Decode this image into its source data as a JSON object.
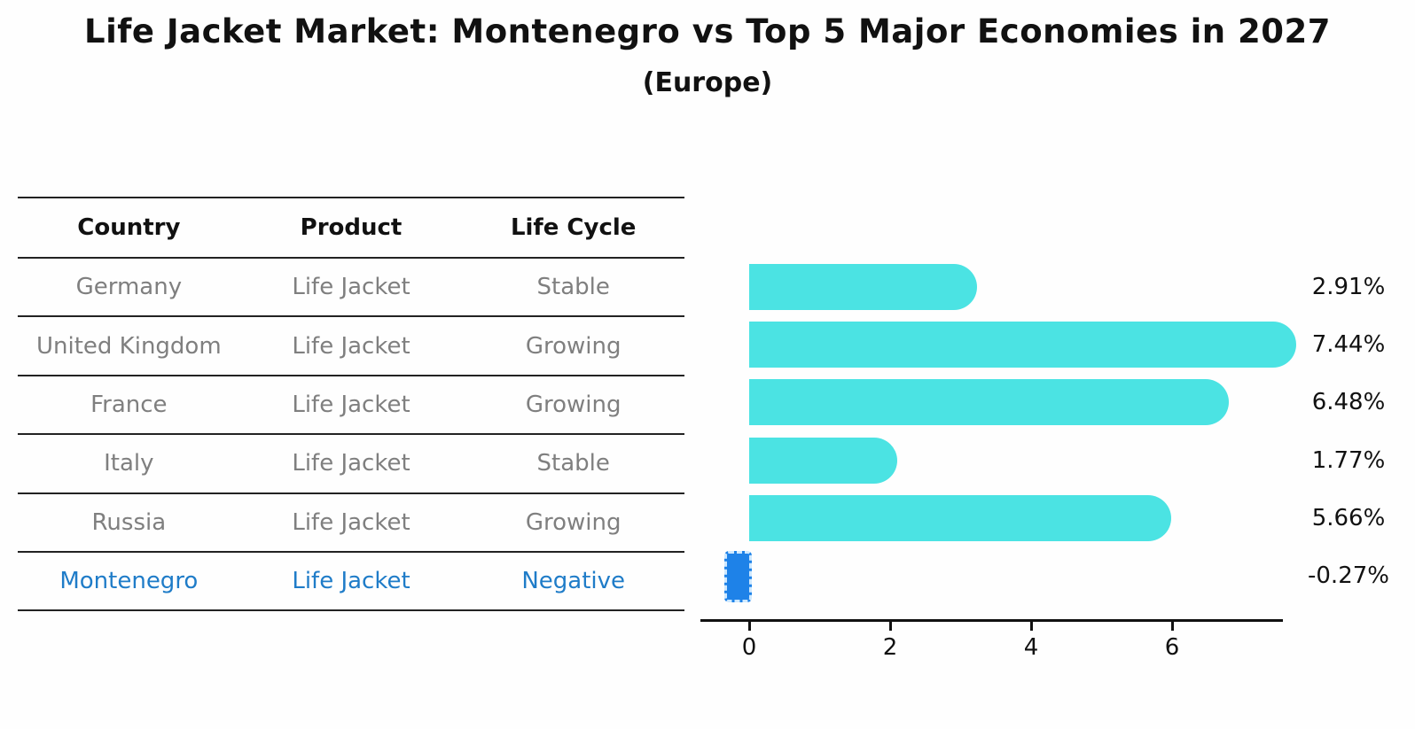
{
  "page": {
    "title": "Life Jacket Market: Montenegro vs Top 5 Major Economies in 2027",
    "subtitle": "(Europe)"
  },
  "table": {
    "headers": [
      "Country",
      "Product",
      "Life Cycle"
    ],
    "rows": [
      {
        "country": "Germany",
        "product": "Life Jacket",
        "life_cycle": "Stable",
        "highlight": false
      },
      {
        "country": "United Kingdom",
        "product": "Life Jacket",
        "life_cycle": "Growing",
        "highlight": false
      },
      {
        "country": "France",
        "product": "Life Jacket",
        "life_cycle": "Growing",
        "highlight": false
      },
      {
        "country": "Italy",
        "product": "Life Jacket",
        "life_cycle": "Stable",
        "highlight": false
      },
      {
        "country": "Russia",
        "product": "Life Jacket",
        "life_cycle": "Growing",
        "highlight": true,
        "note": ""
      },
      {
        "country": "Montenegro",
        "product": "Life Jacket",
        "life_cycle": "Negative",
        "highlight": true
      }
    ],
    "highlight_text_color": "#1f7cc8",
    "body_text_color": "#7f7f7f",
    "header_text_color": "#111111"
  },
  "chart_data": {
    "type": "bar",
    "orientation": "horizontal",
    "title": "Life Jacket Market: Montenegro vs Top 5 Major Economies in 2027",
    "subtitle": "(Europe)",
    "categories": [
      "Germany",
      "United Kingdom",
      "France",
      "Italy",
      "Russia",
      "Montenegro"
    ],
    "values": [
      2.91,
      7.44,
      6.48,
      1.77,
      5.66,
      -0.27
    ],
    "value_labels": [
      "2.91%",
      "7.44%",
      "6.48%",
      "1.77%",
      "5.66%",
      "-0.27%"
    ],
    "x_ticks": [
      0,
      2,
      4,
      6
    ],
    "xlim": [
      -0.7,
      7.6
    ],
    "grid": false,
    "legend": false,
    "bar_color": "#4be3e3",
    "negative_bar_color": "#1e82e8",
    "negative_bar_dash_color": "#cfe9ff",
    "value_label_color": "#111111"
  }
}
